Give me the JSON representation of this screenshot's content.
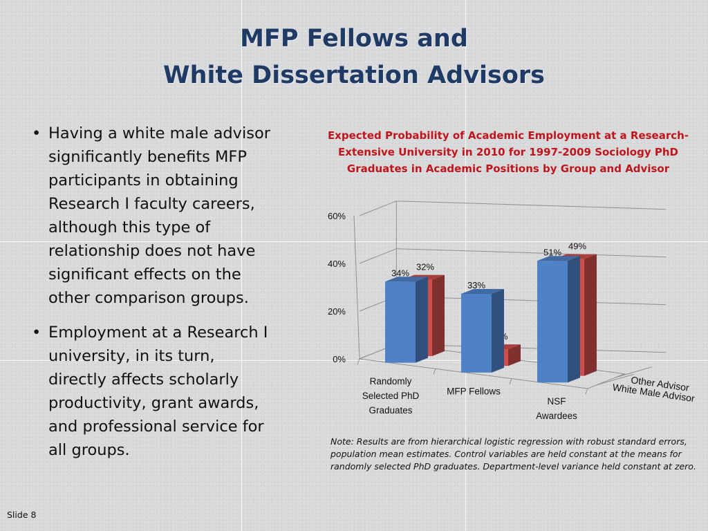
{
  "slide": {
    "title_line1": "MFP Fellows and",
    "title_line2": "White Dissertation Advisors",
    "bullets": [
      "Having a white male advisor significantly benefits MFP participants in obtaining Research I faculty careers, although this type of relationship does not have significant effects on the other comparison groups.",
      "Employment at a Research I university, in its turn, directly affects scholarly productivity, grant awards, and professional service for all groups."
    ],
    "bullet_glyph": "•",
    "note": "Note: Results are from hierarchical logistic regression with robust standard errors, population mean estimates. Control variables are held constant at the means for randomly selected PhD graduates. Department-level variance  held constant at zero.",
    "slide_number": "Slide 8"
  },
  "chart_data": {
    "type": "bar",
    "title_lines": [
      "Expected Probability of Academic Employment at a Research-",
      "Extensive University in 2010 for 1997-2009 Sociology PhD",
      "Graduates in Academic Positions by Group and Advisor"
    ],
    "categories": [
      [
        "Randomly",
        "Selected PhD",
        "Graduates"
      ],
      [
        "MFP Fellows"
      ],
      [
        "NSF",
        "Awardees"
      ]
    ],
    "series": [
      {
        "name": "White Male Advisor",
        "values": [
          34,
          33,
          51
        ],
        "labels": [
          "34%",
          "33%",
          "51%"
        ],
        "color": "#4f81c7"
      },
      {
        "name": "Other Advisor",
        "values": [
          32,
          7,
          49
        ],
        "labels": [
          "32%",
          "7%",
          "49%"
        ],
        "color": "#cf4d4b"
      }
    ],
    "y_ticks": [
      "0%",
      "20%",
      "40%",
      "60%"
    ],
    "ylim": [
      0,
      60
    ],
    "projection": "3d-clustered-columns",
    "colors": {
      "title": "#c0141b",
      "slide_title": "#1f3a64"
    }
  }
}
